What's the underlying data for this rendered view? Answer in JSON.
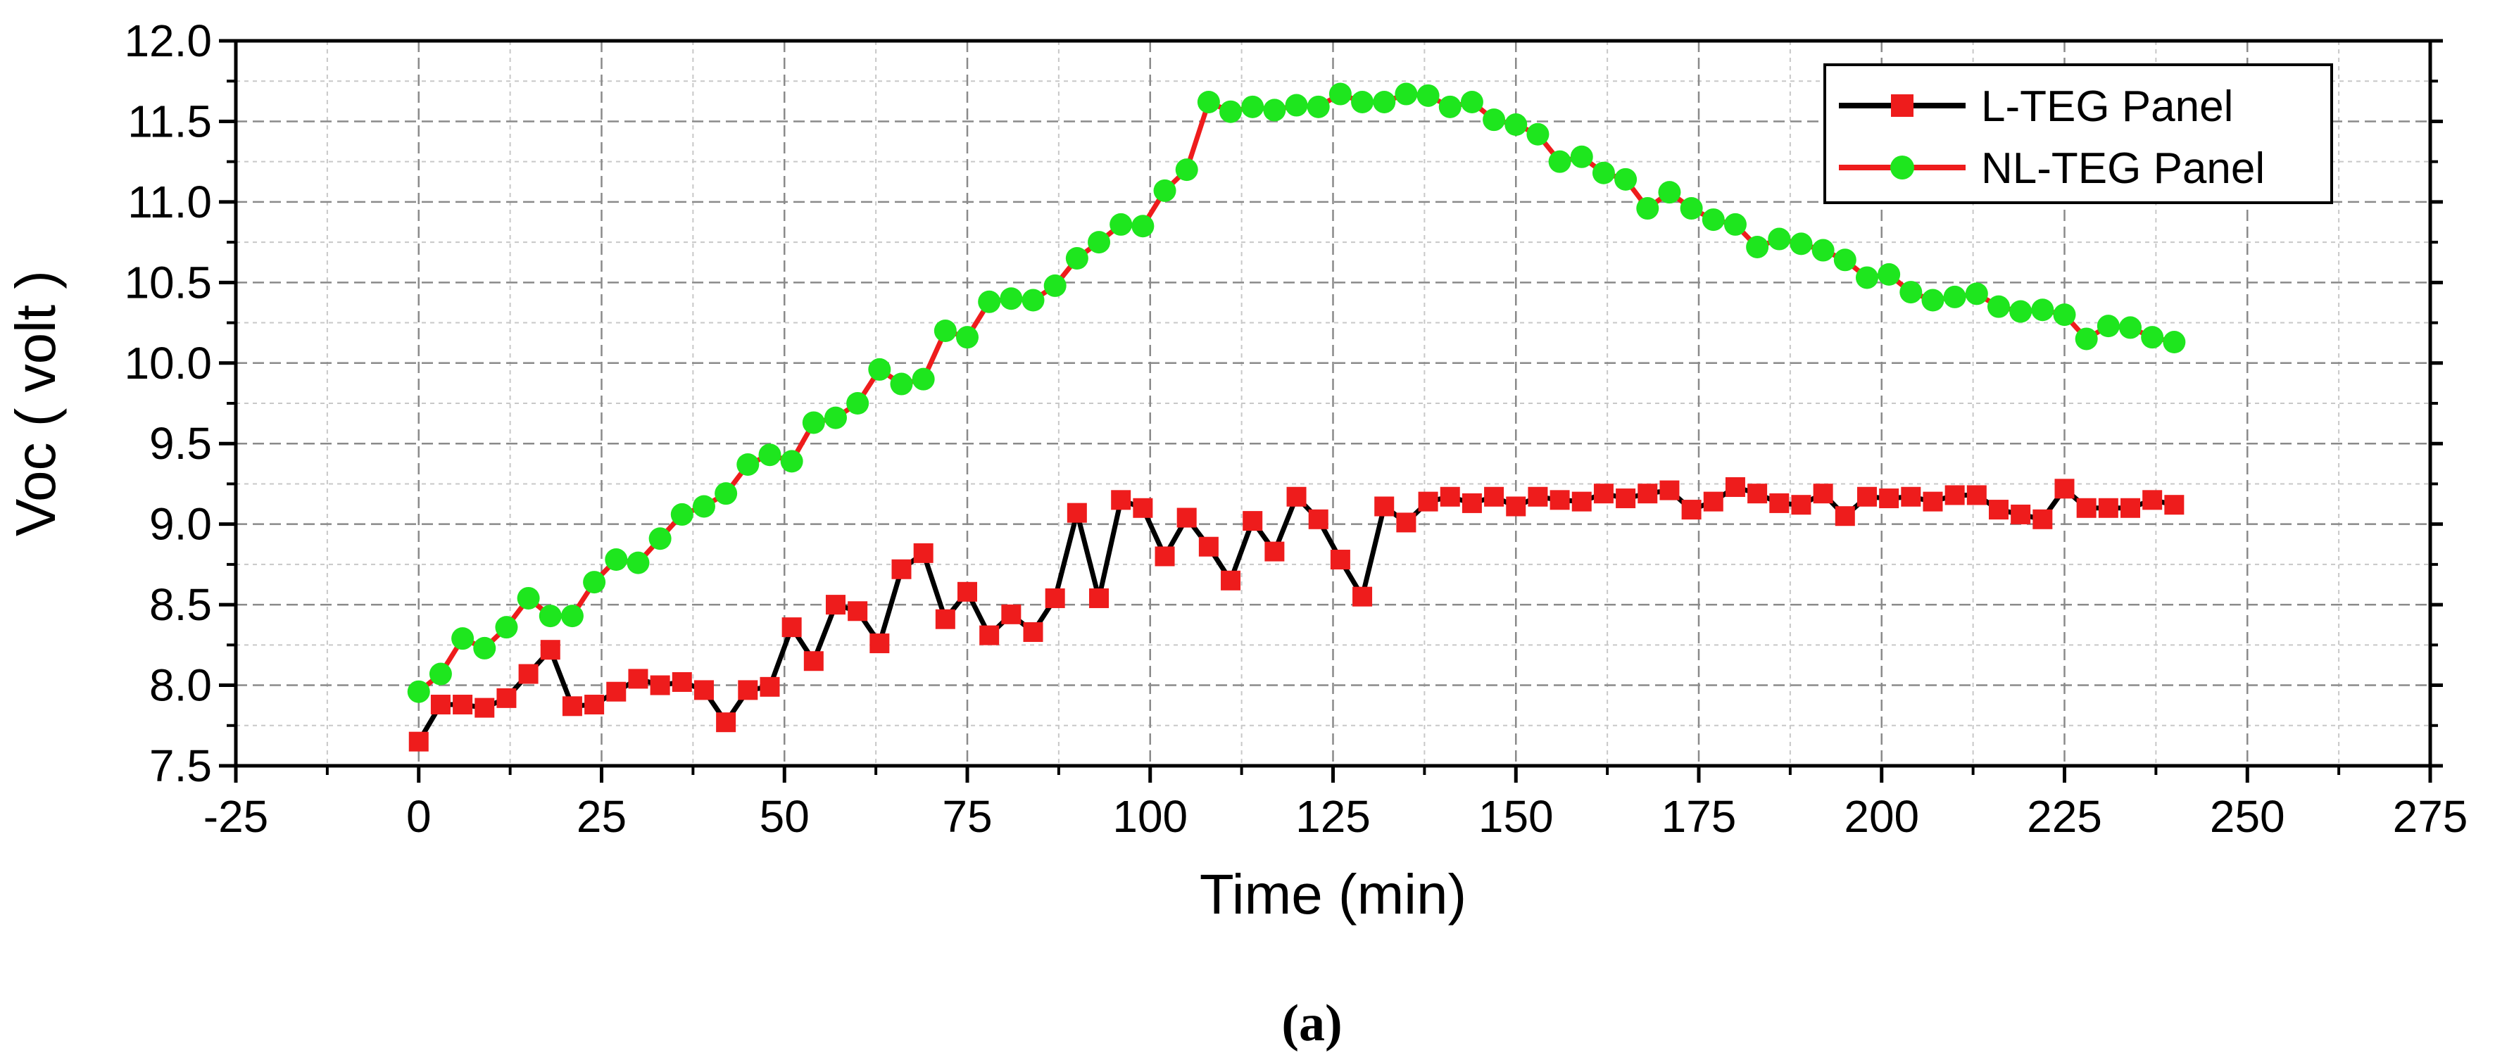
{
  "panel_label": "(a)",
  "chart_data": {
    "type": "line",
    "xlabel": "Time (min)",
    "ylabel": "Voc ( volt )",
    "xlim": [
      -25,
      275
    ],
    "ylim": [
      7.5,
      12.0
    ],
    "xticks": [
      -25,
      0,
      25,
      50,
      75,
      100,
      125,
      150,
      175,
      200,
      225,
      250,
      275
    ],
    "xtick_labels": [
      "-25",
      "0",
      "25",
      "50",
      "75",
      "100",
      "125",
      "150",
      "175",
      "200",
      "225",
      "250",
      "275"
    ],
    "yticks": [
      7.5,
      8.0,
      8.5,
      9.0,
      9.5,
      10.0,
      10.5,
      11.0,
      11.5,
      12.0
    ],
    "ytick_labels": [
      "7.5",
      "8.0",
      "8.5",
      "9.0",
      "9.5",
      "10.0",
      "10.5",
      "11.0",
      "11.5",
      "12.0"
    ],
    "grid": true,
    "legend_position": "top-right",
    "series": [
      {
        "name": "L-TEG Panel",
        "marker": "square",
        "marker_color": "#ee1c1c",
        "line_color": "#000000",
        "x": [
          0,
          3,
          6,
          9,
          12,
          15,
          18,
          21,
          24,
          27,
          30,
          33,
          36,
          39,
          42,
          45,
          48,
          51,
          54,
          57,
          60,
          63,
          66,
          69,
          72,
          75,
          78,
          81,
          84,
          87,
          90,
          93,
          96,
          99,
          102,
          105,
          108,
          111,
          114,
          117,
          120,
          123,
          126,
          129,
          132,
          135,
          138,
          141,
          144,
          147,
          150,
          153,
          156,
          159,
          162,
          165,
          168,
          171,
          174,
          177,
          180,
          183,
          186,
          189,
          192,
          195,
          198,
          201,
          204,
          207,
          210,
          213,
          216,
          219,
          222,
          225,
          228,
          231,
          234,
          237,
          240
        ],
        "y": [
          7.65,
          7.88,
          7.88,
          7.86,
          7.92,
          8.07,
          8.22,
          7.87,
          7.88,
          7.96,
          8.04,
          8.0,
          8.02,
          7.97,
          7.77,
          7.97,
          7.99,
          8.36,
          8.15,
          8.5,
          8.46,
          8.26,
          8.72,
          8.82,
          8.41,
          8.58,
          8.31,
          8.44,
          8.33,
          8.54,
          9.07,
          8.54,
          9.15,
          9.1,
          8.8,
          9.04,
          8.86,
          8.65,
          9.02,
          8.83,
          9.17,
          9.03,
          8.78,
          8.55,
          9.11,
          9.01,
          9.14,
          9.17,
          9.13,
          9.17,
          9.11,
          9.17,
          9.15,
          9.14,
          9.19,
          9.16,
          9.19,
          9.21,
          9.09,
          9.14,
          9.23,
          9.19,
          9.13,
          9.12,
          9.19,
          9.05,
          9.17,
          9.16,
          9.17,
          9.14,
          9.18,
          9.18,
          9.09,
          9.06,
          9.03,
          9.22,
          9.1,
          9.1,
          9.1,
          9.15,
          9.12
        ]
      },
      {
        "name": "NL-TEG Panel",
        "marker": "circle",
        "marker_color": "#1ee61e",
        "line_color": "#ee1c1c",
        "x": [
          0,
          3,
          6,
          9,
          12,
          15,
          18,
          21,
          24,
          27,
          30,
          33,
          36,
          39,
          42,
          45,
          48,
          51,
          54,
          57,
          60,
          63,
          66,
          69,
          72,
          75,
          78,
          81,
          84,
          87,
          90,
          93,
          96,
          99,
          102,
          105,
          108,
          111,
          114,
          117,
          120,
          123,
          126,
          129,
          132,
          135,
          138,
          141,
          144,
          147,
          150,
          153,
          156,
          159,
          162,
          165,
          168,
          171,
          174,
          177,
          180,
          183,
          186,
          189,
          192,
          195,
          198,
          201,
          204,
          207,
          210,
          213,
          216,
          219,
          222,
          225,
          228,
          231,
          234,
          237,
          240
        ],
        "y": [
          7.96,
          8.07,
          8.29,
          8.23,
          8.36,
          8.54,
          8.43,
          8.43,
          8.64,
          8.78,
          8.76,
          8.91,
          9.06,
          9.11,
          9.19,
          9.37,
          9.43,
          9.39,
          9.63,
          9.66,
          9.75,
          9.96,
          9.87,
          9.9,
          10.2,
          10.16,
          10.38,
          10.4,
          10.39,
          10.48,
          10.65,
          10.75,
          10.86,
          10.85,
          11.07,
          11.2,
          11.62,
          11.56,
          11.59,
          11.57,
          11.6,
          11.59,
          11.67,
          11.62,
          11.62,
          11.67,
          11.66,
          11.59,
          11.62,
          11.51,
          11.48,
          11.42,
          11.25,
          11.28,
          11.18,
          11.14,
          10.96,
          11.06,
          10.96,
          10.89,
          10.86,
          10.72,
          10.77,
          10.74,
          10.7,
          10.64,
          10.53,
          10.55,
          10.44,
          10.39,
          10.41,
          10.43,
          10.35,
          10.32,
          10.33,
          10.3,
          10.15,
          10.23,
          10.22,
          10.16,
          10.13
        ]
      }
    ]
  }
}
